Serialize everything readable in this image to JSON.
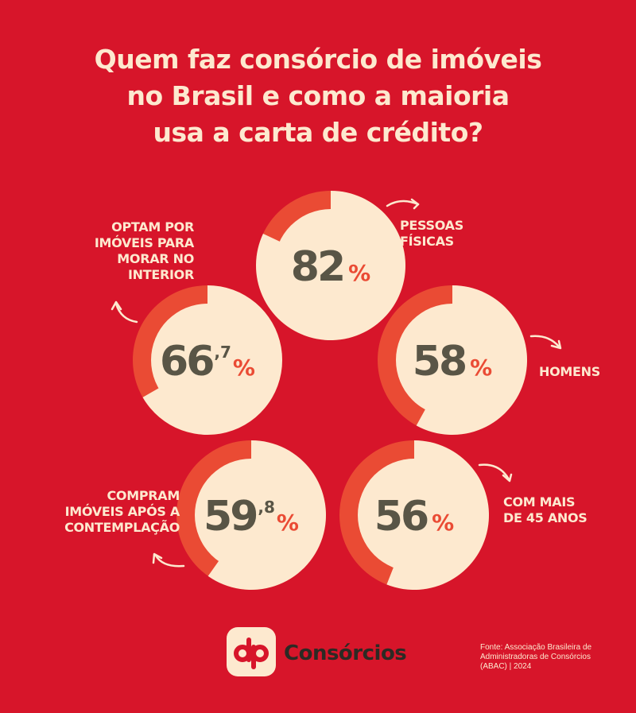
{
  "title_lines": [
    "Quem faz consórcio de imóveis",
    "no Brasil e como a maioria",
    "usa a carta de crédito?"
  ],
  "colors": {
    "background": "#d7152a",
    "ring_track": "#ea4b34",
    "ring_fill": "#fde9cf",
    "number": "#595546",
    "percent_sign": "#ea4b34",
    "text_light": "#fde9cf"
  },
  "chart_data": {
    "type": "pie",
    "unit": "%",
    "items": [
      {
        "int": "82",
        "dec": "",
        "value": 82,
        "label_lines": [
          "PESSOAS",
          "FÍSICAS"
        ]
      },
      {
        "int": "58",
        "dec": "",
        "value": 58,
        "label_lines": [
          "HOMENS"
        ]
      },
      {
        "int": "56",
        "dec": "",
        "value": 56,
        "label_lines": [
          "COM MAIS",
          "DE 45 ANOS"
        ]
      },
      {
        "int": "59",
        "dec": ",8",
        "value": 59.8,
        "label_lines": [
          "COMPRAM",
          "IMÓVEIS APÓS A",
          "CONTEMPLAÇÃO"
        ]
      },
      {
        "int": "66",
        "dec": ",7",
        "value": 66.7,
        "label_lines": [
          "OPTAM POR",
          "IMÓVEIS PARA",
          "MORAR NO",
          "INTERIOR"
        ]
      }
    ]
  },
  "brand": {
    "logo_mark": "dp",
    "name": "Consórcios"
  },
  "source_lines": [
    "Fonte: Associação Brasileira de",
    "Administradoras de Consórcios",
    "(ABAC) | 2024"
  ]
}
